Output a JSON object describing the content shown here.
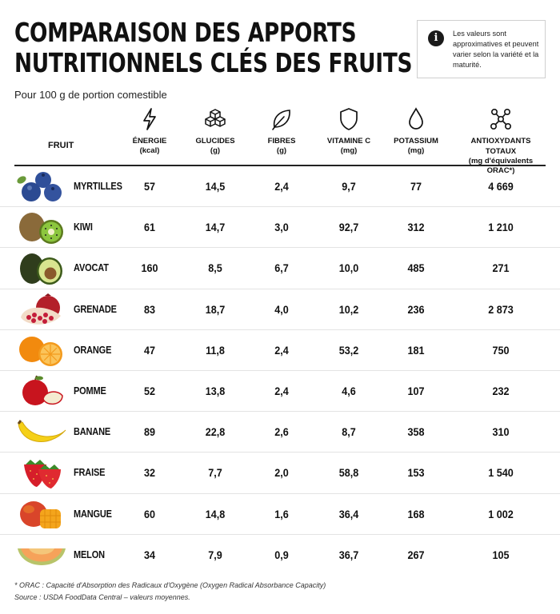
{
  "title": {
    "line1": "COMPARAISON DES APPORTS",
    "line2": "NUTRITIONNELS CLÉS DES FRUITS"
  },
  "subtitle": "Pour 100 g de portion comestible",
  "note": {
    "icon": "info-icon",
    "text": "Les valeurs sont approximatives et peuvent varier selon la variété et la maturité."
  },
  "columns": {
    "fruit": "FRUIT",
    "energy": {
      "label": "ÉNERGIE",
      "unit": "(kcal)",
      "icon": "lightning-icon"
    },
    "carbs": {
      "label": "GLUCIDES",
      "unit": "(g)",
      "icon": "sugar-cubes-icon"
    },
    "fiber": {
      "label": "FIBRES",
      "unit": "(g)",
      "icon": "leaf-icon"
    },
    "vitc": {
      "label": "VITAMINE C",
      "unit": "(mg)",
      "icon": "shield-icon"
    },
    "potassium": {
      "label": "POTASSIUM",
      "unit": "(mg)",
      "icon": "drop-icon"
    },
    "antiox": {
      "label": "ANTIOXYDANTS TOTAUX",
      "unit": "(mg d'équivalents ORAC*)",
      "icon": "molecule-icon"
    }
  },
  "rows": [
    {
      "fruit": "MYRTILLES",
      "energy": "57",
      "carbs": "14,5",
      "fiber": "2,4",
      "vitc": "9,7",
      "potassium": "77",
      "antiox": "4 669"
    },
    {
      "fruit": "KIWI",
      "energy": "61",
      "carbs": "14,7",
      "fiber": "3,0",
      "vitc": "92,7",
      "potassium": "312",
      "antiox": "1 210"
    },
    {
      "fruit": "AVOCAT",
      "energy": "160",
      "carbs": "8,5",
      "fiber": "6,7",
      "vitc": "10,0",
      "potassium": "485",
      "antiox": "271"
    },
    {
      "fruit": "GRENADE",
      "energy": "83",
      "carbs": "18,7",
      "fiber": "4,0",
      "vitc": "10,2",
      "potassium": "236",
      "antiox": "2 873"
    },
    {
      "fruit": "ORANGE",
      "energy": "47",
      "carbs": "11,8",
      "fiber": "2,4",
      "vitc": "53,2",
      "potassium": "181",
      "antiox": "750"
    },
    {
      "fruit": "POMME",
      "energy": "52",
      "carbs": "13,8",
      "fiber": "2,4",
      "vitc": "4,6",
      "potassium": "107",
      "antiox": "232"
    },
    {
      "fruit": "BANANE",
      "energy": "89",
      "carbs": "22,8",
      "fiber": "2,6",
      "vitc": "8,7",
      "potassium": "358",
      "antiox": "310"
    },
    {
      "fruit": "FRAISE",
      "energy": "32",
      "carbs": "7,7",
      "fiber": "2,0",
      "vitc": "58,8",
      "potassium": "153",
      "antiox": "1 540"
    },
    {
      "fruit": "MANGUE",
      "energy": "60",
      "carbs": "14,8",
      "fiber": "1,6",
      "vitc": "36,4",
      "potassium": "168",
      "antiox": "1 002"
    },
    {
      "fruit": "MELON",
      "energy": "34",
      "carbs": "7,9",
      "fiber": "0,9",
      "vitc": "36,7",
      "potassium": "267",
      "antiox": "105"
    }
  ],
  "footnotes": {
    "orac": "* ORAC : Capacité d'Absorption des Radicaux d'Oxygène (Oxygen Radical Absorbance Capacity)",
    "source": "Source : USDA FoodData Central – valeurs moyennes."
  }
}
